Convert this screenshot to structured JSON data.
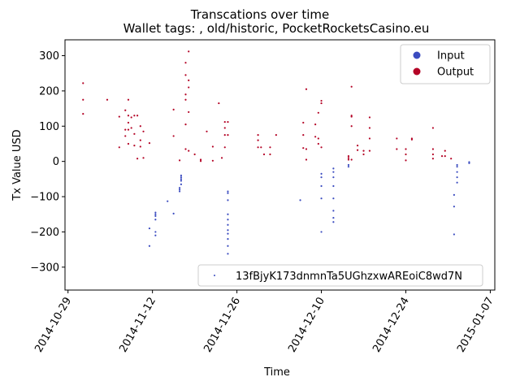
{
  "chart_data": {
    "type": "scatter",
    "title": "Transcations over time",
    "subtitle": "Wallet tags: , old/historic, PocketRocketsCasino.eu",
    "xlabel": "Time",
    "ylabel": "Tx Value USD",
    "x_type": "date",
    "xlim": [
      "2014-10-28T12:00",
      "2015-01-07T18:00"
    ],
    "ylim": [
      -365,
      345
    ],
    "x_ticks": [
      "2014-10-29",
      "2014-11-12",
      "2014-11-26",
      "2014-12-10",
      "2014-12-24",
      "2015-01-07"
    ],
    "y_ticks": [
      300,
      200,
      100,
      0,
      -100,
      -200,
      -300
    ],
    "grid": false,
    "legend_top": {
      "placement": "upper right",
      "entries": [
        {
          "label": "Input",
          "color": "#3b4cc0"
        },
        {
          "label": "Output",
          "color": "#b40426"
        }
      ]
    },
    "legend_bottom": {
      "placement": "lower right",
      "entries": [
        {
          "label": "13fBjyK173dnmnTa5UGhzxwAREoiC8wd7N",
          "color": "#3b4cc0"
        }
      ]
    },
    "series": [
      {
        "name": "Output",
        "color": "#b40426",
        "points": [
          [
            "2014-10-31T12:00",
            222
          ],
          [
            "2014-10-31T12:00",
            175
          ],
          [
            "2014-10-31T12:00",
            135
          ],
          [
            "2014-11-04T12:00",
            175
          ],
          [
            "2014-11-06T12:00",
            127
          ],
          [
            "2014-11-06T12:00",
            40
          ],
          [
            "2014-11-07T12:00",
            145
          ],
          [
            "2014-11-07T12:00",
            90
          ],
          [
            "2014-11-07T12:00",
            72
          ],
          [
            "2014-11-08T00:00",
            175
          ],
          [
            "2014-11-08T00:00",
            130
          ],
          [
            "2014-11-08T00:00",
            110
          ],
          [
            "2014-11-08T00:00",
            90
          ],
          [
            "2014-11-08T00:00",
            50
          ],
          [
            "2014-11-08T12:00",
            125
          ],
          [
            "2014-11-08T12:00",
            95
          ],
          [
            "2014-11-09T00:00",
            130
          ],
          [
            "2014-11-09T00:00",
            78
          ],
          [
            "2014-11-09T00:00",
            45
          ],
          [
            "2014-11-09T12:00",
            130
          ],
          [
            "2014-11-09T12:00",
            8
          ],
          [
            "2014-11-10T00:00",
            100
          ],
          [
            "2014-11-10T00:00",
            60
          ],
          [
            "2014-11-10T00:00",
            42
          ],
          [
            "2014-11-10T12:00",
            85
          ],
          [
            "2014-11-10T12:00",
            10
          ],
          [
            "2014-11-11T12:00",
            52
          ],
          [
            "2014-11-15T12:00",
            147
          ],
          [
            "2014-11-15T12:00",
            72
          ],
          [
            "2014-11-16T12:00",
            3
          ],
          [
            "2014-11-17T12:00",
            280
          ],
          [
            "2014-11-17T12:00",
            245
          ],
          [
            "2014-11-17T12:00",
            190
          ],
          [
            "2014-11-17T12:00",
            175
          ],
          [
            "2014-11-17T12:00",
            105
          ],
          [
            "2014-11-17T12:00",
            35
          ],
          [
            "2014-11-18T00:00",
            312
          ],
          [
            "2014-11-18T00:00",
            230
          ],
          [
            "2014-11-18T00:00",
            210
          ],
          [
            "2014-11-18T00:00",
            140
          ],
          [
            "2014-11-18T00:00",
            30
          ],
          [
            "2014-11-19T00:00",
            20
          ],
          [
            "2014-11-20T00:00",
            5
          ],
          [
            "2014-11-20T00:00",
            1
          ],
          [
            "2014-11-21T00:00",
            85
          ],
          [
            "2014-11-22T00:00",
            42
          ],
          [
            "2014-11-22T00:00",
            2
          ],
          [
            "2014-11-23T00:00",
            165
          ],
          [
            "2014-11-23T12:00",
            10
          ],
          [
            "2014-11-24T00:00",
            112
          ],
          [
            "2014-11-24T00:00",
            95
          ],
          [
            "2014-11-24T00:00",
            75
          ],
          [
            "2014-11-24T00:00",
            40
          ],
          [
            "2014-11-24T12:00",
            112
          ],
          [
            "2014-11-24T12:00",
            75
          ],
          [
            "2014-11-29T12:00",
            75
          ],
          [
            "2014-11-29T12:00",
            60
          ],
          [
            "2014-11-29T12:00",
            40
          ],
          [
            "2014-11-30T00:00",
            40
          ],
          [
            "2014-11-30T12:00",
            20
          ],
          [
            "2014-12-01T12:00",
            40
          ],
          [
            "2014-12-01T12:00",
            20
          ],
          [
            "2014-12-02T12:00",
            75
          ],
          [
            "2014-12-07T00:00",
            110
          ],
          [
            "2014-12-07T00:00",
            75
          ],
          [
            "2014-12-07T00:00",
            38
          ],
          [
            "2014-12-07T12:00",
            205
          ],
          [
            "2014-12-07T12:00",
            35
          ],
          [
            "2014-12-07T12:00",
            5
          ],
          [
            "2014-12-09T00:00",
            105
          ],
          [
            "2014-12-09T00:00",
            70
          ],
          [
            "2014-12-09T12:00",
            138
          ],
          [
            "2014-12-09T12:00",
            65
          ],
          [
            "2014-12-09T12:00",
            50
          ],
          [
            "2014-12-10T00:00",
            172
          ],
          [
            "2014-12-10T00:00",
            165
          ],
          [
            "2014-12-10T00:00",
            40
          ],
          [
            "2014-12-14T12:00",
            15
          ],
          [
            "2014-12-14T12:00",
            10
          ],
          [
            "2014-12-14T12:00",
            5
          ],
          [
            "2014-12-15T00:00",
            212
          ],
          [
            "2014-12-15T00:00",
            130
          ],
          [
            "2014-12-15T00:00",
            127
          ],
          [
            "2014-12-15T00:00",
            100
          ],
          [
            "2014-12-15T00:00",
            5
          ],
          [
            "2014-12-16T00:00",
            45
          ],
          [
            "2014-12-16T00:00",
            32
          ],
          [
            "2014-12-17T00:00",
            30
          ],
          [
            "2014-12-17T00:00",
            20
          ],
          [
            "2014-12-18T00:00",
            125
          ],
          [
            "2014-12-18T00:00",
            95
          ],
          [
            "2014-12-18T00:00",
            65
          ],
          [
            "2014-12-18T00:00",
            30
          ],
          [
            "2014-12-22T12:00",
            65
          ],
          [
            "2014-12-22T12:00",
            35
          ],
          [
            "2014-12-24T00:00",
            35
          ],
          [
            "2014-12-24T00:00",
            20
          ],
          [
            "2014-12-24T00:00",
            3
          ],
          [
            "2014-12-25T00:00",
            65
          ],
          [
            "2014-12-25T00:00",
            62
          ],
          [
            "2014-12-28T12:00",
            95
          ],
          [
            "2014-12-28T12:00",
            35
          ],
          [
            "2014-12-28T12:00",
            20
          ],
          [
            "2014-12-28T12:00",
            8
          ],
          [
            "2014-12-30T00:00",
            15
          ],
          [
            "2014-12-30T12:00",
            30
          ],
          [
            "2014-12-30T12:00",
            15
          ],
          [
            "2014-12-31T12:00",
            8
          ]
        ]
      },
      {
        "name": "Input",
        "color": "#3b4cc0",
        "points": [
          [
            "2014-11-11T12:00",
            -190
          ],
          [
            "2014-11-11T12:00",
            -240
          ],
          [
            "2014-11-12T12:00",
            -145
          ],
          [
            "2014-11-12T12:00",
            -150
          ],
          [
            "2014-11-12T12:00",
            -155
          ],
          [
            "2014-11-12T12:00",
            -165
          ],
          [
            "2014-11-12T12:00",
            -200
          ],
          [
            "2014-11-12T12:00",
            -210
          ],
          [
            "2014-11-14T12:00",
            -113
          ],
          [
            "2014-11-15T12:00",
            -148
          ],
          [
            "2014-11-16T12:00",
            -75
          ],
          [
            "2014-11-16T12:00",
            -80
          ],
          [
            "2014-11-16T12:00",
            -85
          ],
          [
            "2014-11-16T18:00",
            -40
          ],
          [
            "2014-11-16T18:00",
            -45
          ],
          [
            "2014-11-16T18:00",
            -50
          ],
          [
            "2014-11-16T18:00",
            -55
          ],
          [
            "2014-11-16T18:00",
            -65
          ],
          [
            "2014-11-24T12:00",
            -85
          ],
          [
            "2014-11-24T12:00",
            -90
          ],
          [
            "2014-11-24T12:00",
            -110
          ],
          [
            "2014-11-24T12:00",
            -150
          ],
          [
            "2014-11-24T12:00",
            -165
          ],
          [
            "2014-11-24T12:00",
            -180
          ],
          [
            "2014-11-24T12:00",
            -195
          ],
          [
            "2014-11-24T12:00",
            -205
          ],
          [
            "2014-11-24T12:00",
            -220
          ],
          [
            "2014-11-24T12:00",
            -240
          ],
          [
            "2014-11-24T12:00",
            -262
          ],
          [
            "2014-12-06T12:00",
            -110
          ],
          [
            "2014-12-10T00:00",
            -35
          ],
          [
            "2014-12-10T00:00",
            -45
          ],
          [
            "2014-12-10T00:00",
            -70
          ],
          [
            "2014-12-10T00:00",
            -105
          ],
          [
            "2014-12-10T00:00",
            -200
          ],
          [
            "2014-12-12T00:00",
            -20
          ],
          [
            "2014-12-12T00:00",
            -30
          ],
          [
            "2014-12-12T00:00",
            -45
          ],
          [
            "2014-12-12T00:00",
            -70
          ],
          [
            "2014-12-12T00:00",
            -105
          ],
          [
            "2014-12-12T00:00",
            -140
          ],
          [
            "2014-12-12T00:00",
            -160
          ],
          [
            "2014-12-12T00:00",
            -172
          ],
          [
            "2014-12-14T12:00",
            -10
          ],
          [
            "2014-12-14T12:00",
            -15
          ],
          [
            "2015-01-01T00:00",
            -95
          ],
          [
            "2015-01-01T00:00",
            -128
          ],
          [
            "2015-01-01T00:00",
            -207
          ],
          [
            "2015-01-01T12:00",
            -10
          ],
          [
            "2015-01-01T12:00",
            -15
          ],
          [
            "2015-01-01T12:00",
            -30
          ],
          [
            "2015-01-01T12:00",
            -45
          ],
          [
            "2015-01-01T12:00",
            -60
          ],
          [
            "2015-01-03T12:00",
            -2
          ],
          [
            "2015-01-03T12:00",
            -5
          ]
        ]
      }
    ]
  }
}
